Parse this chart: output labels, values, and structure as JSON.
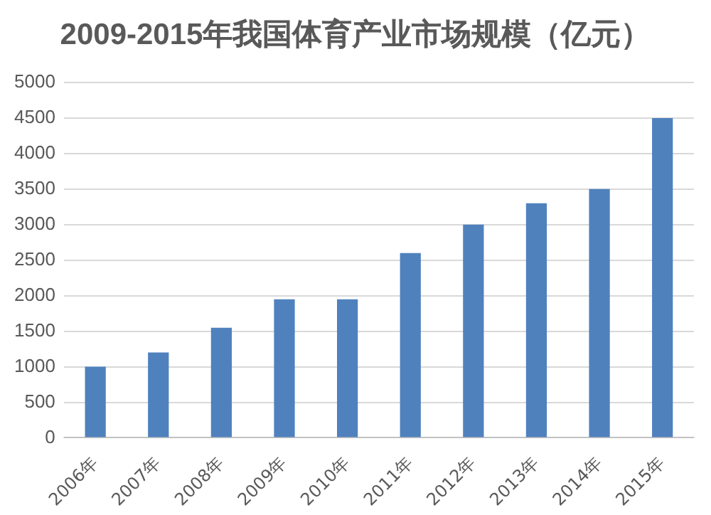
{
  "chart_data": {
    "type": "bar",
    "title": "2009-2015年我国体育产业市场规模（亿元）",
    "categories": [
      "2006年",
      "2007年",
      "2008年",
      "2009年",
      "2010年",
      "2011年",
      "2012年",
      "2013年",
      "2014年",
      "2015年"
    ],
    "values": [
      1000,
      1200,
      1550,
      1950,
      1950,
      2600,
      3000,
      3300,
      3500,
      4500
    ],
    "color": "#4f81bd",
    "ylim": [
      0,
      5000
    ],
    "yticks": [
      0,
      500,
      1000,
      1500,
      2000,
      2500,
      3000,
      3500,
      4000,
      4500,
      5000
    ],
    "grid": "y"
  }
}
